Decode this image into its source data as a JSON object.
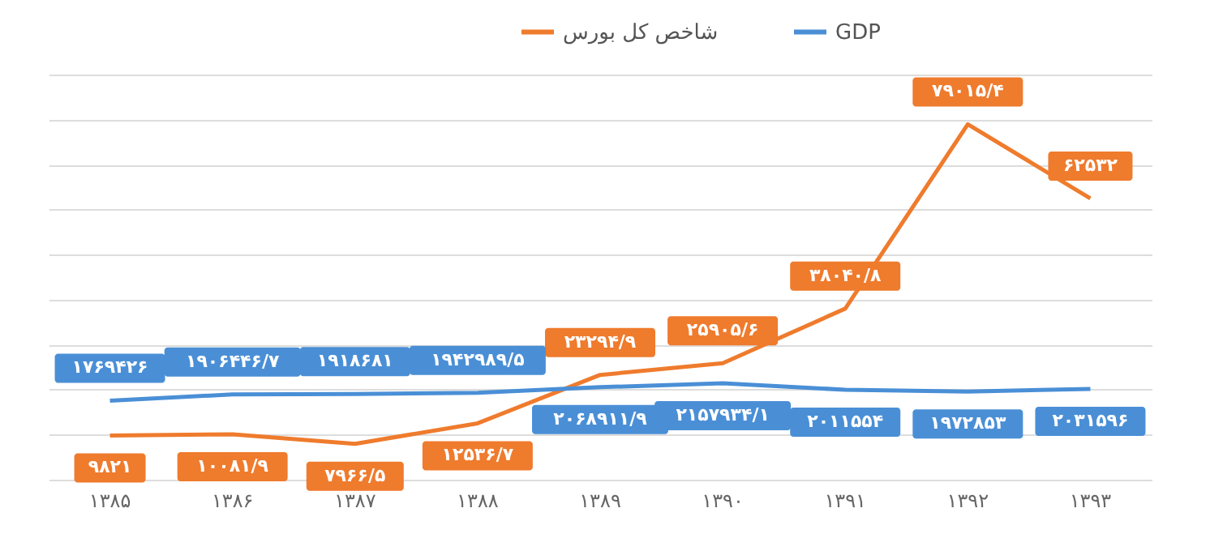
{
  "chart_data": {
    "type": "line",
    "categories": [
      "۱۳۸۵",
      "۱۳۸۶",
      "۱۳۸۷",
      "۱۳۸۸",
      "۱۳۸۹",
      "۱۳۹۰",
      "۱۳۹۱",
      "۱۳۹۲",
      "۱۳۹۳"
    ],
    "series": [
      {
        "name": "شاخص کل بورس",
        "color": "#ef7b2d",
        "values": [
          9821,
          10081.9,
          7966.5,
          12536.7,
          23294.9,
          25905.6,
          38040.8,
          79015.4,
          62532
        ],
        "value_labels": [
          "۹۸۲۱",
          "۱۰۰۸۱/۹",
          "۷۹۶۶/۵",
          "۱۲۵۳۶/۷",
          "۲۳۲۹۴/۹",
          "۲۵۹۰۵/۶",
          "۳۸۰۴۰/۸",
          "۷۹۰۱۵/۴",
          "۶۲۵۳۲"
        ]
      },
      {
        "name": "GDP",
        "color": "#4a8fd6",
        "axis": "y2",
        "values": [
          1769426,
          1906446.7,
          1918681,
          1942989.5,
          2068911.9,
          2157934.1,
          2011554,
          1972853,
          2031596
        ],
        "value_labels": [
          "۱۷۶۹۴۲۶",
          "۱۹۰۶۴۴۶/۷",
          "۱۹۱۸۶۸۱",
          "۱۹۴۲۹۸۹/۵",
          "۲۰۶۸۹۱۱/۹",
          "۲۱۵۷۹۳۴/۱",
          "۲۰۱۱۵۵۴",
          "۱۹۷۲۸۵۳",
          "۲۰۳۱۵۹۶"
        ]
      }
    ],
    "grid": "y",
    "legend": "top right",
    "tick_labels": "x",
    "marker": "none",
    "line_style": "solid"
  }
}
